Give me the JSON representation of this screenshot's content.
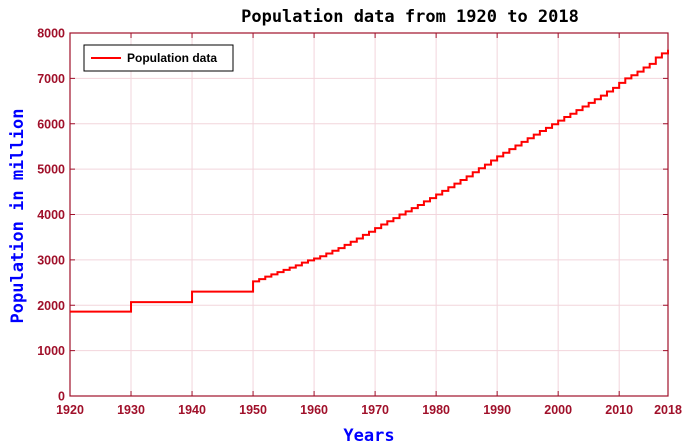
{
  "chart_data": {
    "type": "line",
    "step": true,
    "title": "Population data from 1920 to 2018",
    "xlabel": "Years",
    "ylabel": "Population in million",
    "xlim": [
      1920,
      2018
    ],
    "ylim": [
      0,
      8000
    ],
    "x_ticks": [
      "1920",
      "1930",
      "1940",
      "1950",
      "1960",
      "1970",
      "1980",
      "1990",
      "2000",
      "2010",
      "2018"
    ],
    "y_ticks": [
      "0",
      "1000",
      "2000",
      "3000",
      "4000",
      "5000",
      "6000",
      "7000",
      "8000"
    ],
    "grid": true,
    "legend_position": "top-left",
    "colors": {
      "line": "#ff0000",
      "axis": "#a0102a",
      "grid": "#f2d5dc"
    },
    "series": [
      {
        "name": "Population data",
        "x": [
          1920,
          1930,
          1940,
          1950,
          1951,
          1952,
          1953,
          1954,
          1955,
          1956,
          1957,
          1958,
          1959,
          1960,
          1961,
          1962,
          1963,
          1964,
          1965,
          1966,
          1967,
          1968,
          1969,
          1970,
          1971,
          1972,
          1973,
          1974,
          1975,
          1976,
          1977,
          1978,
          1979,
          1980,
          1981,
          1982,
          1983,
          1984,
          1985,
          1986,
          1987,
          1988,
          1989,
          1990,
          1991,
          1992,
          1993,
          1994,
          1995,
          1996,
          1997,
          1998,
          1999,
          2000,
          2001,
          2002,
          2003,
          2004,
          2005,
          2006,
          2007,
          2008,
          2009,
          2010,
          2011,
          2012,
          2013,
          2014,
          2015,
          2016,
          2017,
          2018
        ],
        "values": [
          1860,
          2070,
          2300,
          2525,
          2575,
          2630,
          2680,
          2730,
          2780,
          2830,
          2880,
          2940,
          2990,
          3030,
          3080,
          3140,
          3200,
          3260,
          3330,
          3400,
          3470,
          3550,
          3620,
          3700,
          3780,
          3850,
          3920,
          4000,
          4070,
          4140,
          4210,
          4290,
          4360,
          4440,
          4520,
          4600,
          4680,
          4760,
          4840,
          4930,
          5020,
          5100,
          5190,
          5280,
          5360,
          5440,
          5520,
          5600,
          5680,
          5760,
          5840,
          5910,
          5990,
          6070,
          6150,
          6220,
          6300,
          6380,
          6460,
          6540,
          6620,
          6710,
          6790,
          6900,
          7000,
          7070,
          7150,
          7240,
          7320,
          7460,
          7550,
          7630
        ]
      }
    ]
  }
}
